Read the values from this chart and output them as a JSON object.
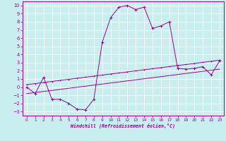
{
  "xlabel": "Windchill (Refroidissement éolien,°C)",
  "xlim": [
    -0.5,
    23.5
  ],
  "ylim": [
    -3.5,
    10.5
  ],
  "xticks": [
    0,
    1,
    2,
    3,
    4,
    5,
    6,
    7,
    8,
    9,
    10,
    11,
    12,
    13,
    14,
    15,
    16,
    17,
    18,
    19,
    20,
    21,
    22,
    23
  ],
  "yticks": [
    -3,
    -2,
    -1,
    0,
    1,
    2,
    3,
    4,
    5,
    6,
    7,
    8,
    9,
    10
  ],
  "bg_color": "#c8eef0",
  "grid_color": "#aadddd",
  "line_color": "#990099",
  "line_main": [
    0.0,
    -0.8,
    1.2,
    -1.5,
    -1.5,
    -2.0,
    -2.7,
    -2.8,
    -1.5,
    5.5,
    8.5,
    9.8,
    10.0,
    9.5,
    9.8,
    7.2,
    7.5,
    8.0,
    2.3,
    2.2,
    2.3,
    2.5,
    1.5,
    3.2
  ],
  "line_trend_high": [
    0.3,
    0.43,
    0.56,
    0.69,
    0.82,
    0.95,
    1.08,
    1.21,
    1.34,
    1.47,
    1.6,
    1.73,
    1.86,
    1.99,
    2.12,
    2.25,
    2.38,
    2.51,
    2.64,
    2.77,
    2.9,
    3.03,
    3.16,
    3.3
  ],
  "line_trend_low": [
    -0.8,
    -0.67,
    -0.54,
    -0.41,
    -0.28,
    -0.15,
    -0.02,
    0.11,
    0.24,
    0.37,
    0.5,
    0.63,
    0.76,
    0.89,
    1.02,
    1.15,
    1.28,
    1.41,
    1.54,
    1.67,
    1.8,
    1.93,
    2.06,
    2.2
  ]
}
